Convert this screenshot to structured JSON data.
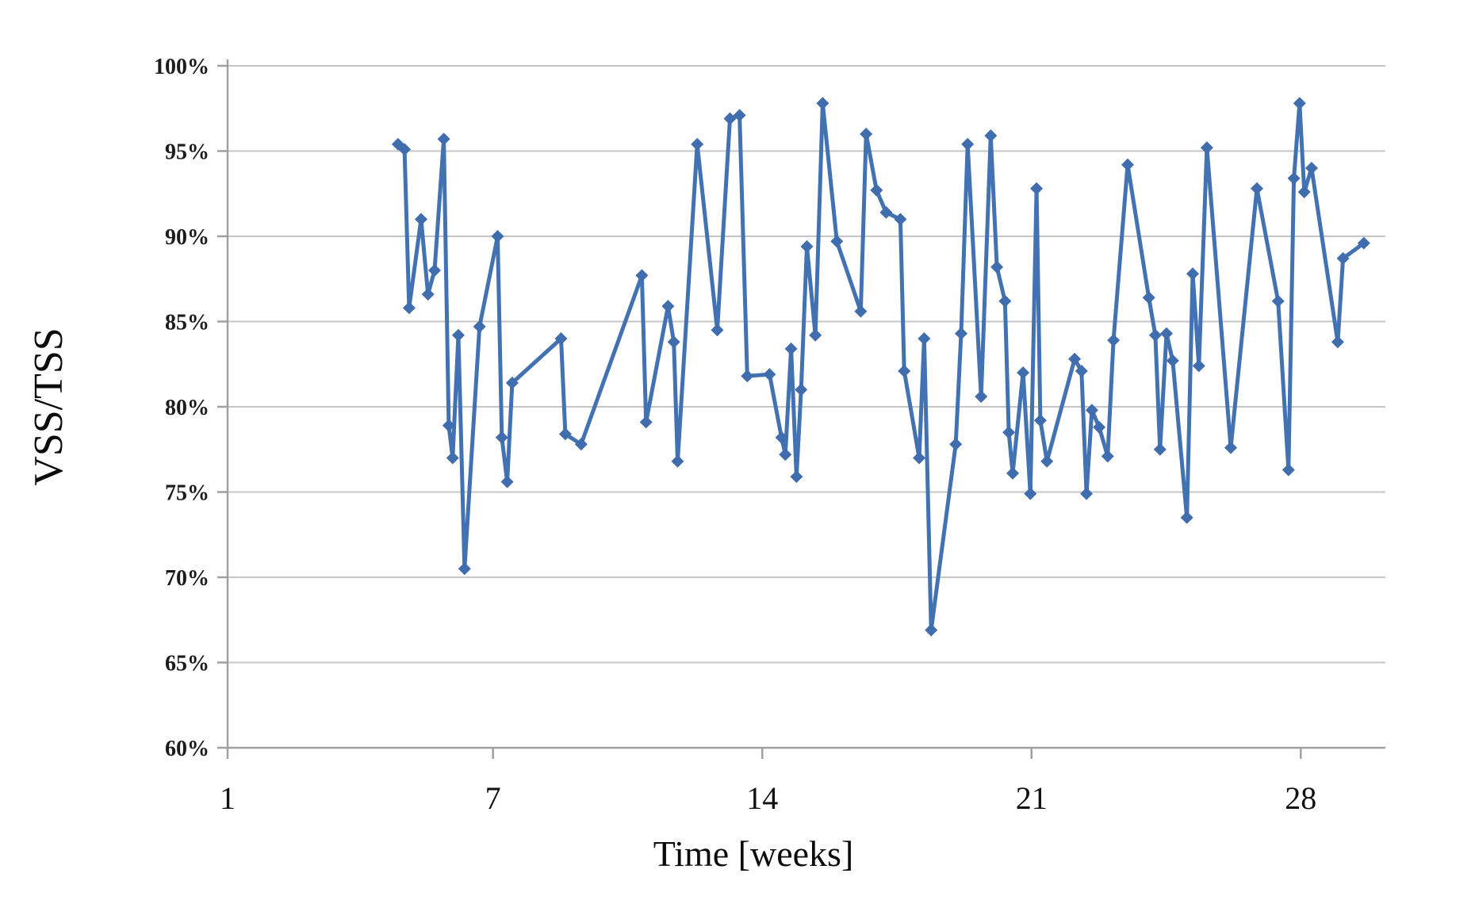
{
  "chart_data": {
    "type": "line",
    "title": "",
    "xlabel": "Time [weeks]",
    "ylabel": "VSS/TSS",
    "legend": "none",
    "grid": "horizontal-only",
    "y_tick_labels": [
      "100%",
      "95%",
      "90%",
      "85%",
      "80%",
      "75%",
      "70%",
      "65%",
      "60%"
    ],
    "y_tick_values": [
      100,
      95,
      90,
      85,
      80,
      75,
      70,
      65,
      60
    ],
    "ylim": [
      60,
      100
    ],
    "x_tick_labels": [
      "1",
      "7",
      "14",
      "21",
      "28"
    ],
    "x_tick_weeks": [
      0.1,
      7,
      14,
      21,
      28
    ],
    "xlim": [
      0.1,
      30.2
    ],
    "line_color": "#4272b2",
    "marker_color": "#3f6dae",
    "gridline_color": "#c6c6c6",
    "axis_color": "#a0a0a0",
    "marker_shape": "diamond",
    "series": [
      {
        "name": "VSS/TSS",
        "points": [
          [
            4.53,
            95.4
          ],
          [
            4.7,
            95.1
          ],
          [
            4.82,
            85.8
          ],
          [
            5.13,
            91.0
          ],
          [
            5.31,
            86.6
          ],
          [
            5.48,
            88.0
          ],
          [
            5.72,
            95.7
          ],
          [
            5.85,
            78.9
          ],
          [
            5.95,
            77.0
          ],
          [
            6.1,
            84.2
          ],
          [
            6.26,
            70.5
          ],
          [
            6.65,
            84.7
          ],
          [
            7.12,
            90.0
          ],
          [
            7.23,
            78.2
          ],
          [
            7.37,
            75.6
          ],
          [
            7.5,
            81.4
          ],
          [
            8.77,
            84.0
          ],
          [
            8.88,
            78.4
          ],
          [
            9.29,
            77.8
          ],
          [
            10.87,
            87.7
          ],
          [
            10.98,
            79.1
          ],
          [
            11.55,
            85.9
          ],
          [
            11.7,
            83.8
          ],
          [
            11.8,
            76.8
          ],
          [
            12.31,
            95.4
          ],
          [
            12.83,
            84.5
          ],
          [
            13.16,
            96.9
          ],
          [
            13.41,
            97.1
          ],
          [
            13.61,
            81.8
          ],
          [
            14.19,
            81.9
          ],
          [
            14.5,
            78.2
          ],
          [
            14.6,
            77.2
          ],
          [
            14.75,
            83.4
          ],
          [
            14.89,
            75.9
          ],
          [
            15.01,
            81.0
          ],
          [
            15.16,
            89.4
          ],
          [
            15.38,
            84.2
          ],
          [
            15.57,
            97.8
          ],
          [
            15.94,
            89.7
          ],
          [
            16.56,
            85.6
          ],
          [
            16.7,
            96.0
          ],
          [
            16.97,
            92.7
          ],
          [
            17.22,
            91.4
          ],
          [
            17.59,
            91.0
          ],
          [
            17.69,
            82.1
          ],
          [
            18.08,
            77.0
          ],
          [
            18.21,
            84.0
          ],
          [
            18.39,
            66.9
          ],
          [
            19.03,
            77.8
          ],
          [
            19.17,
            84.3
          ],
          [
            19.34,
            95.4
          ],
          [
            19.69,
            80.6
          ],
          [
            19.94,
            95.9
          ],
          [
            20.1,
            88.2
          ],
          [
            20.31,
            86.2
          ],
          [
            20.41,
            78.5
          ],
          [
            20.51,
            76.1
          ],
          [
            20.78,
            82.0
          ],
          [
            20.97,
            74.9
          ],
          [
            21.13,
            92.8
          ],
          [
            21.23,
            79.2
          ],
          [
            21.4,
            76.8
          ],
          [
            22.12,
            82.8
          ],
          [
            22.3,
            82.1
          ],
          [
            22.43,
            74.9
          ],
          [
            22.57,
            79.8
          ],
          [
            22.76,
            78.8
          ],
          [
            22.98,
            77.1
          ],
          [
            23.13,
            83.9
          ],
          [
            23.5,
            94.2
          ],
          [
            24.05,
            86.4
          ],
          [
            24.22,
            84.2
          ],
          [
            24.34,
            77.5
          ],
          [
            24.51,
            84.3
          ],
          [
            24.67,
            82.7
          ],
          [
            25.04,
            73.5
          ],
          [
            25.19,
            87.8
          ],
          [
            25.35,
            82.4
          ],
          [
            25.56,
            95.2
          ],
          [
            26.18,
            77.6
          ],
          [
            26.86,
            92.8
          ],
          [
            27.41,
            86.2
          ],
          [
            27.68,
            76.3
          ],
          [
            27.82,
            93.4
          ],
          [
            27.97,
            97.8
          ],
          [
            28.09,
            92.6
          ],
          [
            28.28,
            94.0
          ],
          [
            28.96,
            83.8
          ],
          [
            29.1,
            88.7
          ],
          [
            29.64,
            89.6
          ]
        ]
      }
    ]
  }
}
